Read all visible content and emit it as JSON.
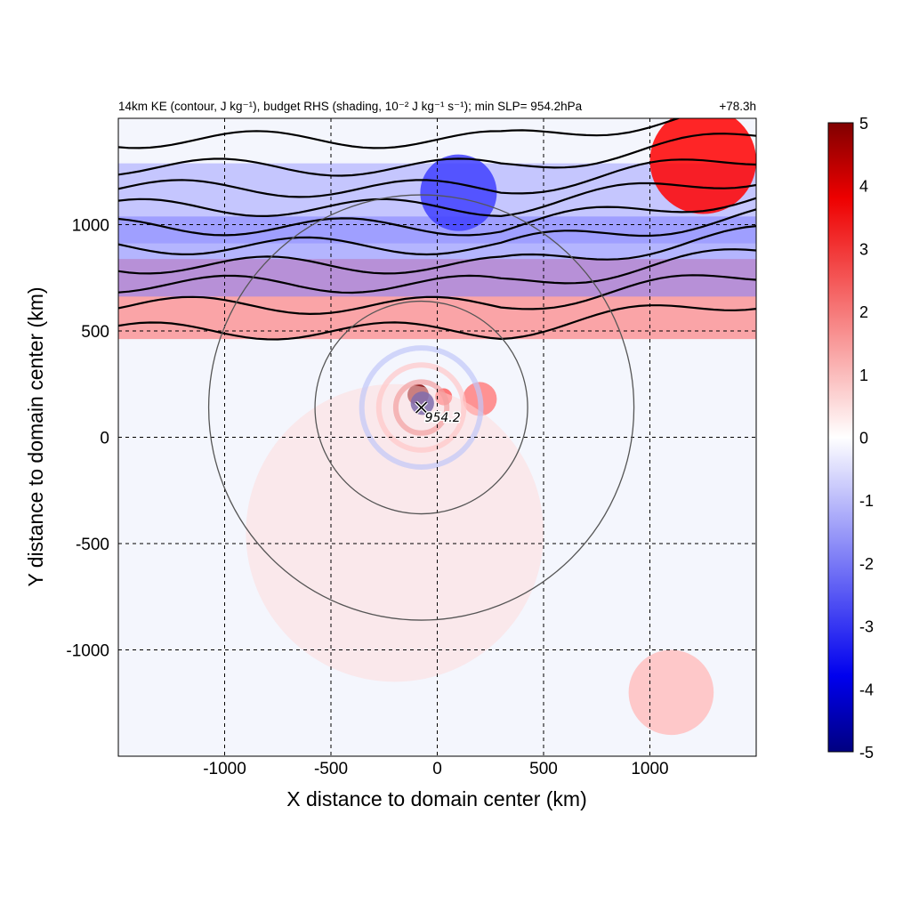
{
  "chart_data": {
    "type": "heatmap",
    "title": {
      "left": "14km KE (contour, J kg⁻¹), budget RHS (shading, 10⁻² J kg⁻¹ s⁻¹); min SLP= 954.2hPa",
      "right": "+78.3h"
    },
    "xlabel": "X distance to domain center (km)",
    "ylabel": "Y distance to domain center (km)",
    "xlim": [
      -1500,
      1500
    ],
    "ylim": [
      -1500,
      1500
    ],
    "xticks": [
      -1000,
      -500,
      0,
      500,
      1000
    ],
    "yticks": [
      -1000,
      -500,
      0,
      500,
      1000
    ],
    "grid": "dashed",
    "colorbar": {
      "range": [
        -5,
        5
      ],
      "ticks": [
        5,
        4,
        3,
        2,
        1,
        0,
        -1,
        -2,
        -3,
        -4,
        -5
      ],
      "colormap": [
        "#000080",
        "#0000ff",
        "#ffffff",
        "#ff0000",
        "#800000"
      ]
    },
    "storm_center": {
      "x": -75,
      "y": 140,
      "label": "954.2",
      "marker": "x-icon"
    },
    "range_rings_km": [
      500,
      1000
    ],
    "shading_features": [
      {
        "type": "blob",
        "x": -90,
        "y": 200,
        "r": 50,
        "value": 5
      },
      {
        "type": "blob",
        "x": -70,
        "y": 160,
        "r": 55,
        "value": -5
      },
      {
        "type": "blob",
        "x": 30,
        "y": 190,
        "r": 40,
        "value": 2.5
      },
      {
        "type": "blob",
        "x": 200,
        "y": 180,
        "r": 80,
        "value": 2
      },
      {
        "type": "blob",
        "x": -200,
        "y": -450,
        "r": 700,
        "value": 0.6
      },
      {
        "type": "band",
        "y": 1100,
        "value": -1.5
      },
      {
        "type": "band",
        "y": 650,
        "value": 2.5
      },
      {
        "type": "band",
        "y": 850,
        "value": -2
      },
      {
        "type": "blob",
        "x": 1250,
        "y": 1300,
        "r": 250,
        "value": 4
      },
      {
        "type": "blob",
        "x": 100,
        "y": 1150,
        "r": 180,
        "value": -3
      },
      {
        "type": "blob",
        "x": 1100,
        "y": -1200,
        "r": 200,
        "value": 1
      }
    ],
    "ke_contours_y_km": [
      1400,
      1270,
      1170,
      1080,
      990,
      900,
      810,
      720,
      620,
      500
    ]
  }
}
